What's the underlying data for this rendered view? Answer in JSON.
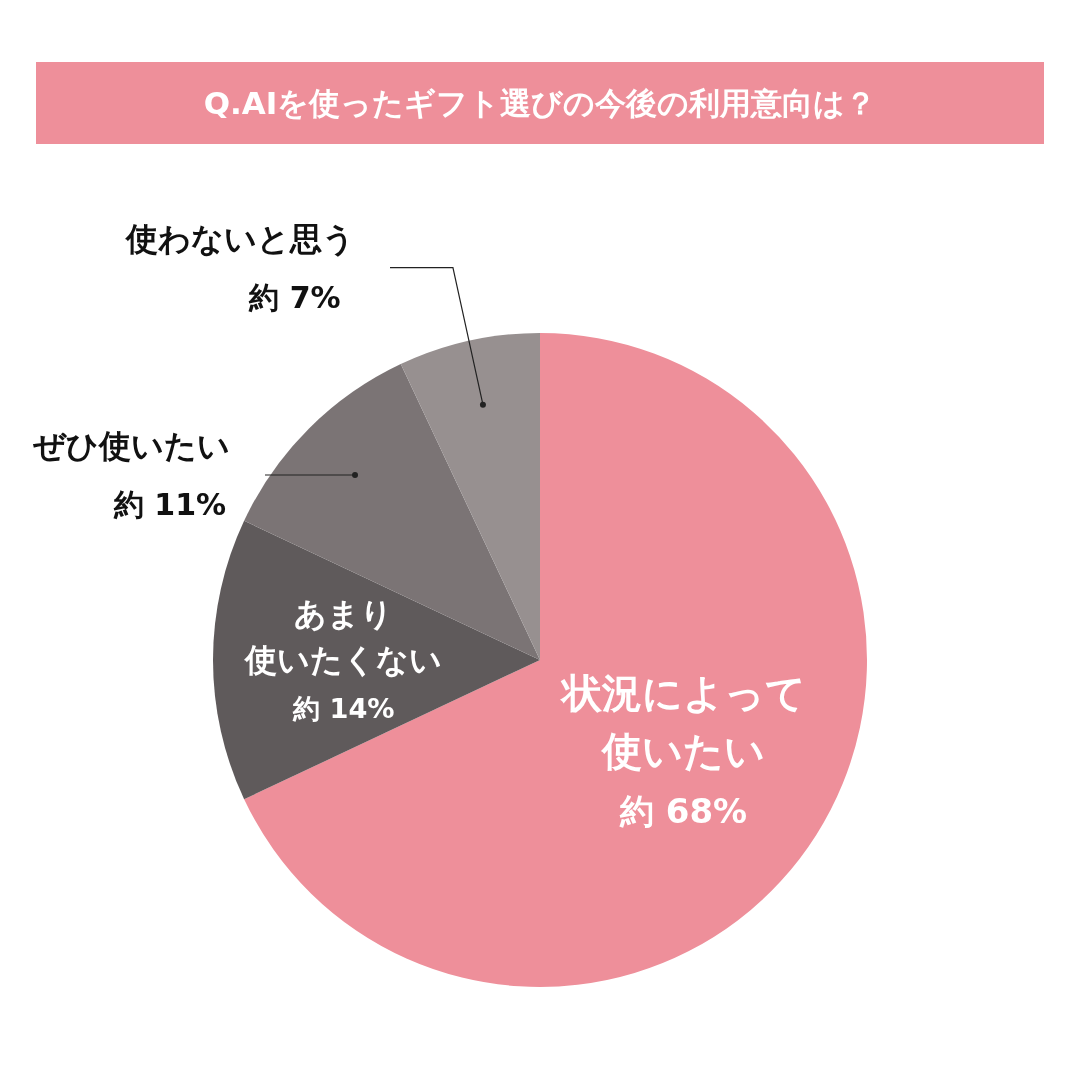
{
  "chart_data": {
    "type": "pie",
    "title": "Q.AIを使ったギフト選びの今後の利用意向は？",
    "categories": [
      "状況によって使いたい",
      "あまり使いたくない",
      "ぜひ使いたい",
      "使わないと思う"
    ],
    "values": [
      68,
      14,
      11,
      7
    ],
    "colors": [
      "#ee8f9a",
      "#5f5a5b",
      "#7b7475",
      "#979090"
    ],
    "value_labels": [
      "約 68%",
      "約 14%",
      "約 11%",
      "約 7%"
    ]
  }
}
